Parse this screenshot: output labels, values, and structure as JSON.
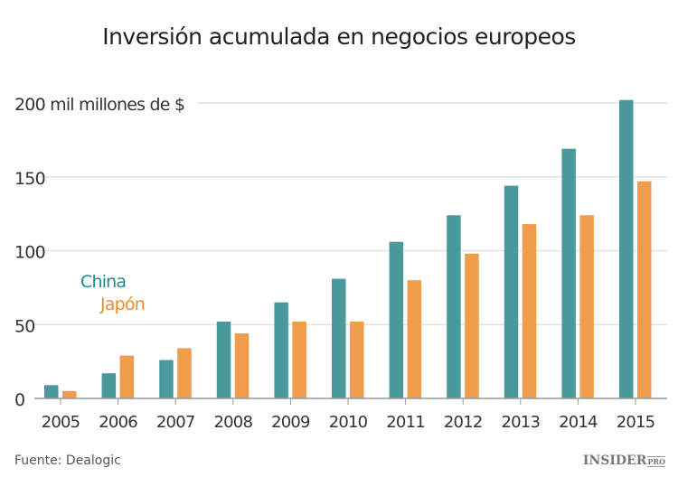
{
  "chart_data": {
    "type": "bar",
    "title": "Inversión acumulada en negocios europeos",
    "ylabel": "mil millones de $",
    "ylim": [
      0,
      200
    ],
    "yticks": [
      0,
      50,
      100,
      150,
      200
    ],
    "ytick_labels": [
      "0",
      "50",
      "100",
      "150",
      "200 mil millones de $"
    ],
    "categories": [
      "2005",
      "2006",
      "2007",
      "2008",
      "2009",
      "2010",
      "2011",
      "2012",
      "2013",
      "2014",
      "2015"
    ],
    "grid": true,
    "legend_placement": "left, inside plot",
    "series": [
      {
        "name": "China",
        "color": "#4a9a9d",
        "values": [
          9,
          17,
          26,
          52,
          65,
          81,
          106,
          124,
          144,
          169,
          202
        ]
      },
      {
        "name": "Japón",
        "color": "#ef9c4b",
        "values": [
          5,
          29,
          34,
          44,
          52,
          52,
          80,
          98,
          118,
          124,
          147
        ]
      }
    ]
  },
  "legend_colors": {
    "China": "#1f8a8e",
    "Japón": "#ef8a2a"
  },
  "source": "Fuente: Dealogic",
  "logo": {
    "main": "INSIDER",
    "sub": "PRO"
  }
}
